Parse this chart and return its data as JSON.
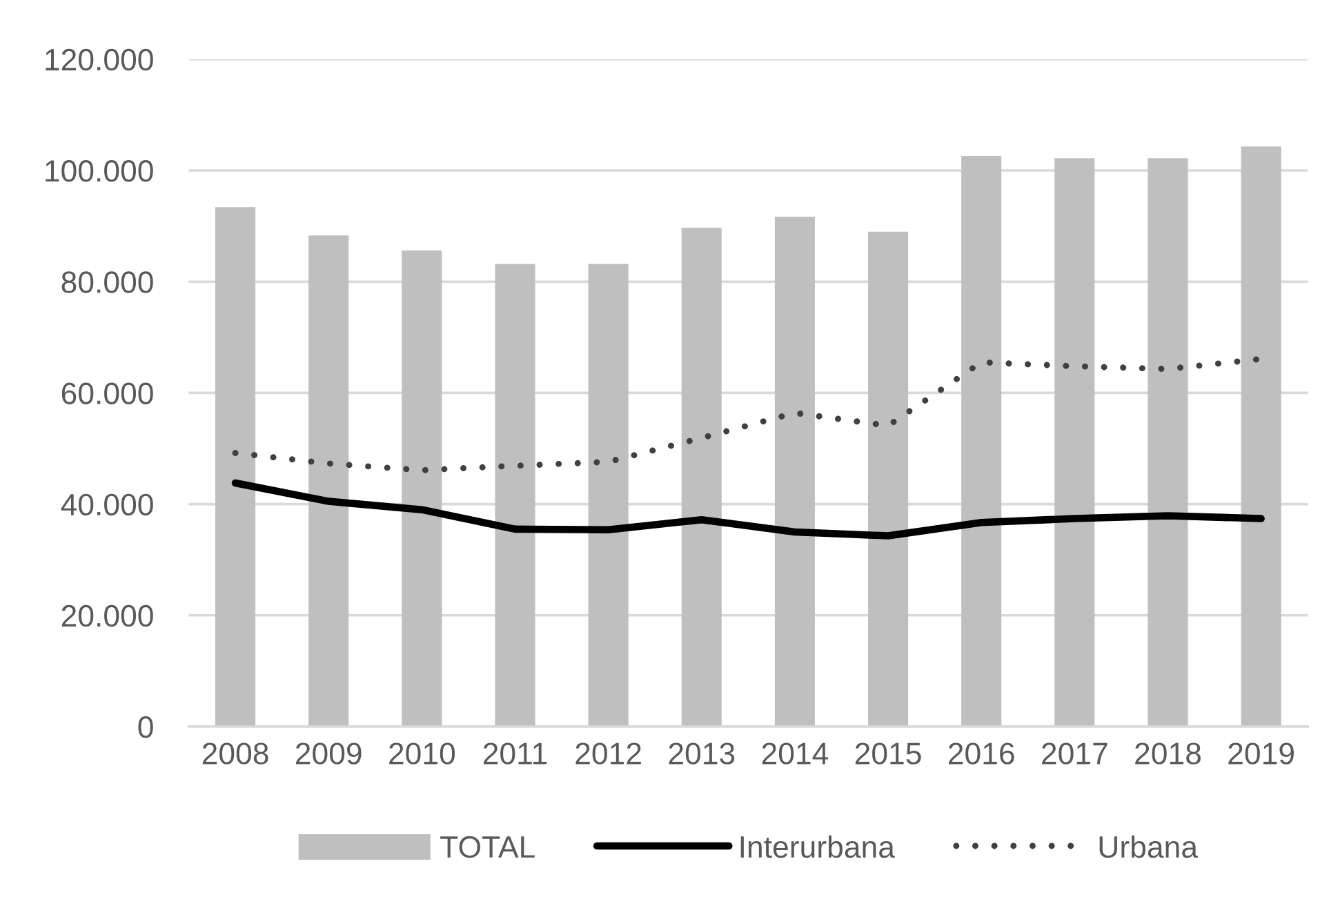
{
  "chart_data": {
    "type": "bar",
    "categories": [
      "2008",
      "2009",
      "2010",
      "2011",
      "2012",
      "2013",
      "2014",
      "2015",
      "2016",
      "2017",
      "2018",
      "2019"
    ],
    "series": [
      {
        "name": "TOTAL",
        "color": "#bfbfbf",
        "values": [
          93400,
          88300,
          85600,
          83200,
          83200,
          89700,
          91700,
          89000,
          102600,
          102200,
          102200,
          104300
        ]
      },
      {
        "name": "Interurbana",
        "type": "line",
        "color": "#000000",
        "line_style": "solid",
        "values": [
          43800,
          40500,
          39000,
          35500,
          35400,
          37200,
          35000,
          34300,
          36700,
          37400,
          37900,
          37400
        ]
      },
      {
        "name": "Urbana",
        "type": "line",
        "color": "#404040",
        "line_style": "dotted",
        "values": [
          49200,
          47300,
          46100,
          46900,
          47600,
          51900,
          56400,
          54100,
          65500,
          64800,
          64300,
          66100
        ]
      }
    ],
    "ylim": [
      0,
      120000
    ],
    "yticks": [
      0,
      {
        "value": 20000,
        "label": "20.000"
      },
      {
        "value": 40000,
        "label": "40.000"
      },
      {
        "value": 60000,
        "label": "60.000"
      },
      {
        "value": 80000,
        "label": "80.000"
      },
      {
        "value": 100000,
        "label": "100.000"
      },
      {
        "value": 120000,
        "label": "120.000"
      }
    ],
    "grid": "y",
    "legend": "bottom"
  }
}
